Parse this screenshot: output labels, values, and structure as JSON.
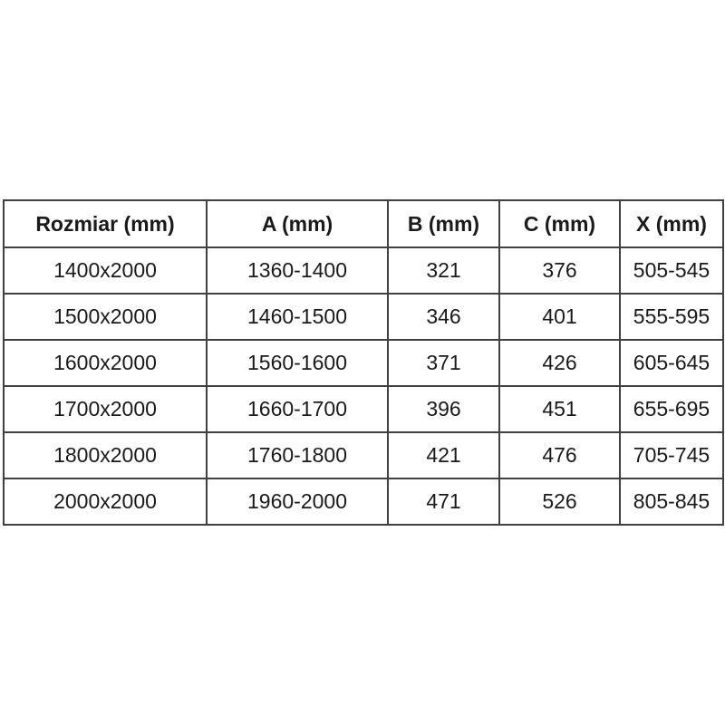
{
  "colors": {
    "page_background": "#ffffff",
    "border_color": "#404040",
    "text_color": "#1a1a1a"
  },
  "chart_data": {
    "type": "table",
    "title": "",
    "columns": [
      "Rozmiar (mm)",
      "A (mm)",
      "B (mm)",
      "C (mm)",
      "X (mm)"
    ],
    "rows": [
      [
        "1400x2000",
        "1360-1400",
        "321",
        "376",
        "505-545"
      ],
      [
        "1500x2000",
        "1460-1500",
        "346",
        "401",
        "555-595"
      ],
      [
        "1600x2000",
        "1560-1600",
        "371",
        "426",
        "605-645"
      ],
      [
        "1700x2000",
        "1660-1700",
        "396",
        "451",
        "655-695"
      ],
      [
        "1800x2000",
        "1760-1800",
        "421",
        "476",
        "705-745"
      ],
      [
        "2000x2000",
        "1960-2000",
        "471",
        "526",
        "805-845"
      ]
    ],
    "layout": {
      "grid": true,
      "header_bold": true,
      "text_align": "center"
    }
  }
}
